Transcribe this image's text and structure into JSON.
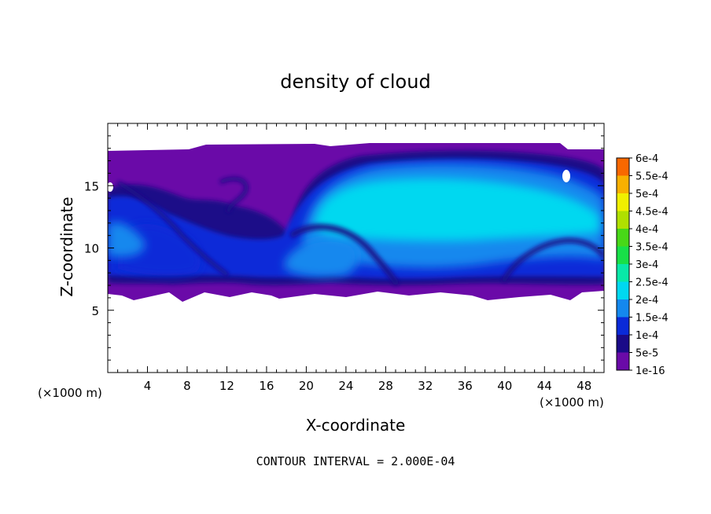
{
  "chart_data": {
    "type": "heatmap",
    "title": "density of cloud",
    "xlabel": "X-coordinate",
    "ylabel": "Z-coordinate",
    "x_unit": "(×1000 m)",
    "y_unit": "(×1000 m)",
    "xlim": [
      0,
      50
    ],
    "ylim": [
      0,
      20
    ],
    "x_ticks": [
      "4",
      "8",
      "12",
      "16",
      "20",
      "24",
      "28",
      "32",
      "36",
      "40",
      "44",
      "48"
    ],
    "y_ticks": [
      "5",
      "10",
      "15"
    ],
    "colorbar": {
      "labels": [
        "1e-16",
        "5e-5",
        "1e-4",
        "1.5e-4",
        "2e-4",
        "2.5e-4",
        "3e-4",
        "3.5e-4",
        "4e-4",
        "4.5e-4",
        "5e-4",
        "5.5e-4",
        "6e-4"
      ],
      "colors": [
        "#6a0aa8",
        "#1a0a88",
        "#0a2ad8",
        "#1488ee",
        "#00d8f0",
        "#08e8a8",
        "#18e048",
        "#48d818",
        "#b0e000",
        "#f0f000",
        "#f8b000",
        "#f86800",
        "#f82000",
        "#f88888"
      ]
    },
    "annotation": "CONTOUR INTERVAL = 2.000E-04"
  }
}
